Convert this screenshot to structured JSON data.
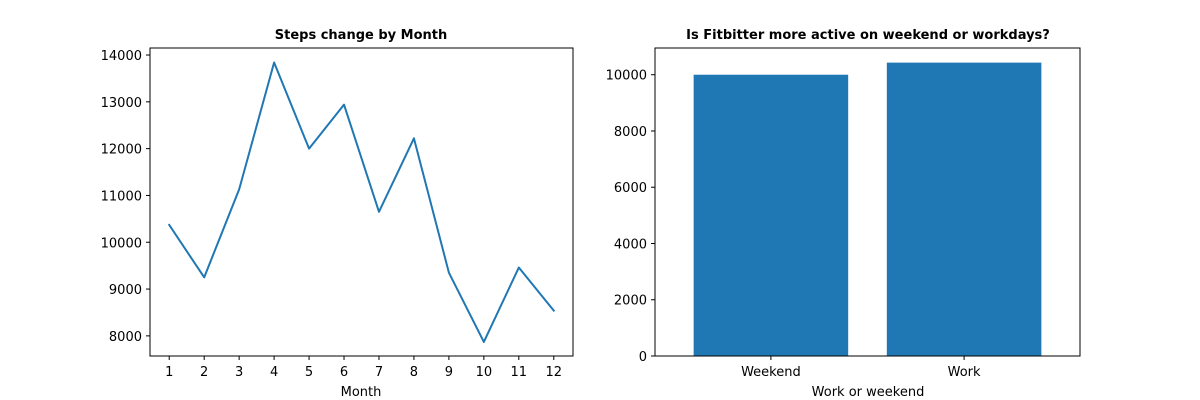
{
  "chart_data": [
    {
      "type": "line",
      "title": "Steps change by Month",
      "xlabel": "Month",
      "ylabel": "",
      "x": [
        1,
        2,
        3,
        4,
        5,
        6,
        7,
        8,
        9,
        10,
        11,
        12
      ],
      "series": [
        {
          "values": [
            10370,
            9250,
            11130,
            13840,
            12000,
            12940,
            10650,
            12220,
            9350,
            7870,
            9460,
            8540
          ],
          "color": "#1f77b4"
        }
      ],
      "xlim": [
        0.45,
        12.55
      ],
      "ylim": [
        7570,
        14150
      ],
      "yticks": [
        8000,
        9000,
        10000,
        11000,
        12000,
        13000,
        14000
      ],
      "grid": false
    },
    {
      "type": "bar",
      "title": "Is Fitbitter more active on weekend or workdays?",
      "xlabel": "Work or weekend",
      "ylabel": "",
      "categories": [
        "Weekend",
        "Work"
      ],
      "values": [
        10000,
        10430
      ],
      "color": "#1f77b4",
      "ylim": [
        0,
        10950
      ],
      "yticks": [
        0,
        2000,
        4000,
        6000,
        8000,
        10000
      ],
      "grid": false
    }
  ]
}
